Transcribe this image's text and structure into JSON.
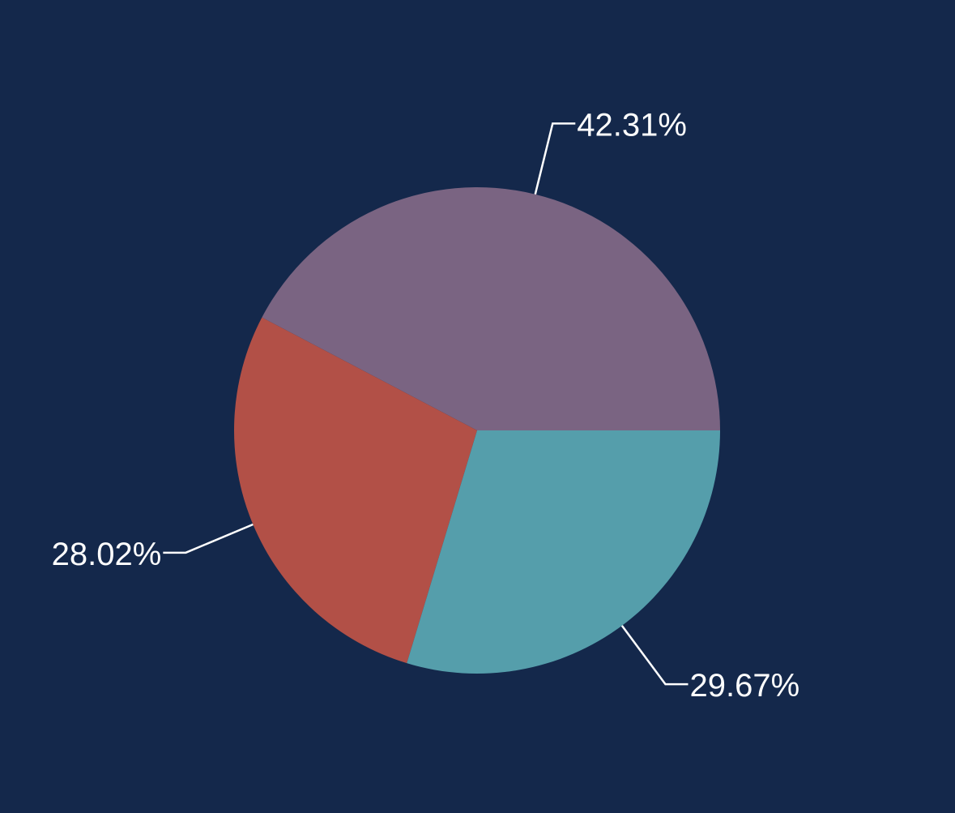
{
  "chart_data": {
    "type": "pie",
    "background": "#14284b",
    "start": "3 o'clock, counter-clockwise",
    "slices": [
      {
        "value": 42.31,
        "label": "42.31%",
        "color": "#7a6482"
      },
      {
        "value": 28.02,
        "label": "28.02%",
        "color": "#b25047"
      },
      {
        "value": 29.67,
        "label": "29.67%",
        "color": "#559eab"
      }
    ],
    "label_color": "#ffffff"
  }
}
